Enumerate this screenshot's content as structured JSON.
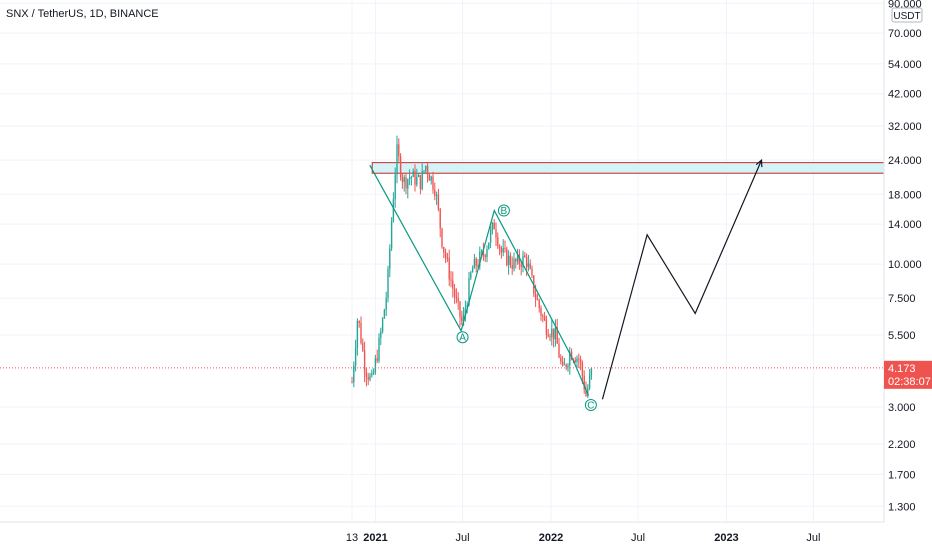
{
  "header": {
    "title": "SNX / TetherUS, 1D, BINANCE"
  },
  "colors": {
    "up": "#26a69a",
    "down": "#ef5350",
    "pattern": "#089981",
    "projection": "#131722",
    "zone_fill": "#d4f3f7",
    "zone_border": "#c62828",
    "price_line": "#ef5350",
    "grid": "#f0f3fa"
  },
  "chart_data": {
    "type": "candlestick",
    "symbol": "SNX / TetherUS",
    "interval": "1D",
    "exchange": "BINANCE",
    "y_scale": "log",
    "currency": "USDT",
    "y_ticks": [
      "90.000",
      "70.000",
      "54.000",
      "42.000",
      "32.000",
      "24.000",
      "18.000",
      "14.000",
      "10.000",
      "7.500",
      "5.500",
      "3.000",
      "2.200",
      "1.700",
      "1.300"
    ],
    "x_ticks": [
      "13",
      "2021",
      "Jul",
      "2022",
      "Jul",
      "2023",
      "Jul"
    ],
    "current_price": {
      "value": "4.173",
      "countdown": "02:38:07"
    },
    "resistance_zone": {
      "low": 21.5,
      "high": 23.5,
      "start": "2020-12-25",
      "end": "2023-11-25"
    },
    "pattern_labels": [
      {
        "label": "A",
        "date": "2021-07-01",
        "price": 5.4
      },
      {
        "label": "B",
        "date": "2021-09-25",
        "price": 15.7
      },
      {
        "label": "C",
        "date": "2022-03-25",
        "price": 3.05
      }
    ],
    "pattern_lines": [
      {
        "date": "2020-12-20",
        "price": 23
      },
      {
        "date": "2021-06-28",
        "price": 5.7
      },
      {
        "date": "2021-09-05",
        "price": 15.7
      },
      {
        "date": "2021-11-10",
        "price": 9.5
      },
      {
        "date": "2022-02-15",
        "price": 4.5
      },
      {
        "date": "2022-03-20",
        "price": 3.3
      }
    ],
    "projection_path": [
      {
        "date": "2022-04-18",
        "price": 3.2
      },
      {
        "date": "2022-07-20",
        "price": 12.8
      },
      {
        "date": "2022-10-28",
        "price": 6.6
      },
      {
        "date": "2023-03-15",
        "price": 24
      }
    ],
    "price_path": [
      {
        "date": "2020-11-13",
        "price": 3.7
      },
      {
        "date": "2020-11-25",
        "price": 6.5
      },
      {
        "date": "2020-12-10",
        "price": 4.2
      },
      {
        "date": "2020-12-24",
        "price": 3.7
      },
      {
        "date": "2021-01-10",
        "price": 5.3
      },
      {
        "date": "2021-01-25",
        "price": 8.0
      },
      {
        "date": "2021-02-05",
        "price": 16.0
      },
      {
        "date": "2021-02-14",
        "price": 26.0
      },
      {
        "date": "2021-02-28",
        "price": 20.0
      },
      {
        "date": "2021-03-15",
        "price": 21.0
      },
      {
        "date": "2021-04-05",
        "price": 20.0
      },
      {
        "date": "2021-04-15",
        "price": 23.0
      },
      {
        "date": "2021-05-05",
        "price": 19.0
      },
      {
        "date": "2021-05-20",
        "price": 12.0
      },
      {
        "date": "2021-06-05",
        "price": 9.0
      },
      {
        "date": "2021-06-20",
        "price": 7.0
      },
      {
        "date": "2021-07-01",
        "price": 6.0
      },
      {
        "date": "2021-07-20",
        "price": 9.5
      },
      {
        "date": "2021-08-15",
        "price": 11.0
      },
      {
        "date": "2021-09-05",
        "price": 14.0
      },
      {
        "date": "2021-09-20",
        "price": 11.0
      },
      {
        "date": "2021-10-15",
        "price": 10.0
      },
      {
        "date": "2021-11-10",
        "price": 10.5
      },
      {
        "date": "2021-12-01",
        "price": 7.5
      },
      {
        "date": "2021-12-20",
        "price": 6.0
      },
      {
        "date": "2022-01-10",
        "price": 5.5
      },
      {
        "date": "2022-01-25",
        "price": 4.0
      },
      {
        "date": "2022-02-10",
        "price": 4.8
      },
      {
        "date": "2022-03-01",
        "price": 4.5
      },
      {
        "date": "2022-03-15",
        "price": 3.3
      },
      {
        "date": "2022-03-28",
        "price": 4.17
      }
    ]
  }
}
